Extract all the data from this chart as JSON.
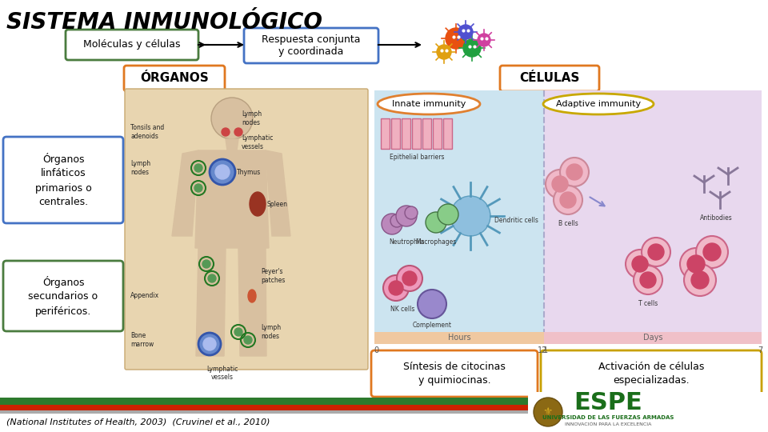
{
  "title": "SISTEMA INMUNOLÓGICO",
  "subtitle_left": "Moléculas y células",
  "subtitle_center": "Respuesta conjunta\ny coordinada",
  "section_organos": "ÓRGANOS",
  "section_celulas": "CÉLULAS",
  "box_organos_1": "Órganos\nlinfáticos\nprimarios o\ncentrales.",
  "box_organos_2": "Órganos\nsecundarios o\nperiféricos.",
  "box_celulas_1": "Síntesis de citocinas\ny quimiocinas.",
  "box_celulas_2": "Activación de células\nespecializadas.",
  "footer": "(National Institutes of Health, 2003)  (Cruvinel et al., 2010)",
  "bg_color": "#ffffff",
  "green_border": "#4a7c3f",
  "blue_border": "#4472c4",
  "orange_border": "#e07820",
  "yellow_border": "#c8a000",
  "innate_bg": "#cce4f0",
  "adaptive_bg": "#e8d8ee",
  "body_bg": "#e8d5b0",
  "body_border": "#c8a870",
  "espe_green": "#1a6e1a",
  "stripe_green": "#2d7a2d",
  "stripe_red": "#cc2200"
}
